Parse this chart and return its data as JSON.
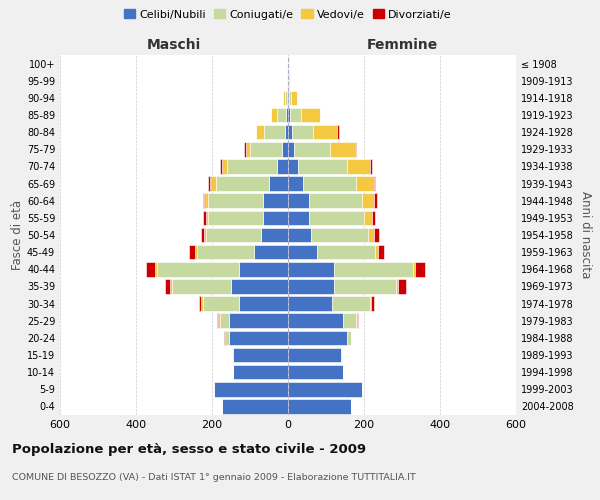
{
  "age_groups": [
    "0-4",
    "5-9",
    "10-14",
    "15-19",
    "20-24",
    "25-29",
    "30-34",
    "35-39",
    "40-44",
    "45-49",
    "50-54",
    "55-59",
    "60-64",
    "65-69",
    "70-74",
    "75-79",
    "80-84",
    "85-89",
    "90-94",
    "95-99",
    "100+"
  ],
  "birth_years": [
    "2004-2008",
    "1999-2003",
    "1994-1998",
    "1989-1993",
    "1984-1988",
    "1979-1983",
    "1974-1978",
    "1969-1973",
    "1964-1968",
    "1959-1963",
    "1954-1958",
    "1949-1953",
    "1944-1948",
    "1939-1943",
    "1934-1938",
    "1929-1933",
    "1924-1928",
    "1919-1923",
    "1914-1918",
    "1909-1913",
    "≤ 1908"
  ],
  "colors": {
    "celibi": "#4472c4",
    "coniugati": "#c5d9a0",
    "vedovi": "#f5c842",
    "divorziati": "#cc0000"
  },
  "maschi": {
    "celibi": [
      175,
      195,
      145,
      145,
      155,
      155,
      130,
      150,
      130,
      90,
      70,
      65,
      65,
      50,
      30,
      15,
      8,
      5,
      2,
      1,
      0
    ],
    "coniugati": [
      0,
      0,
      0,
      3,
      10,
      25,
      95,
      155,
      215,
      150,
      145,
      145,
      145,
      140,
      130,
      85,
      55,
      25,
      5,
      1,
      0
    ],
    "vedovi": [
      0,
      0,
      0,
      0,
      2,
      3,
      3,
      5,
      5,
      5,
      5,
      5,
      10,
      15,
      15,
      10,
      20,
      15,
      5,
      1,
      0
    ],
    "divorziati": [
      0,
      0,
      0,
      0,
      2,
      5,
      5,
      15,
      25,
      15,
      10,
      10,
      5,
      5,
      5,
      5,
      0,
      0,
      0,
      0,
      0
    ]
  },
  "femmine": {
    "celibi": [
      165,
      195,
      145,
      140,
      155,
      145,
      115,
      120,
      120,
      75,
      60,
      55,
      55,
      40,
      25,
      15,
      10,
      5,
      3,
      1,
      1
    ],
    "coniugati": [
      0,
      0,
      0,
      3,
      10,
      35,
      100,
      165,
      210,
      155,
      150,
      145,
      140,
      140,
      130,
      95,
      55,
      30,
      5,
      1,
      0
    ],
    "vedovi": [
      0,
      0,
      0,
      0,
      1,
      2,
      3,
      5,
      5,
      8,
      15,
      20,
      30,
      45,
      60,
      65,
      65,
      50,
      15,
      3,
      1
    ],
    "divorziati": [
      0,
      0,
      0,
      0,
      1,
      3,
      8,
      20,
      25,
      15,
      15,
      10,
      10,
      5,
      5,
      5,
      3,
      0,
      0,
      0,
      0
    ]
  },
  "title": "Popolazione per età, sesso e stato civile - 2009",
  "subtitle": "COMUNE DI BESOZZO (VA) - Dati ISTAT 1° gennaio 2009 - Elaborazione TUTTITALIA.IT",
  "xlabel_left": "Maschi",
  "xlabel_right": "Femmine",
  "ylabel_left": "Fasce di età",
  "ylabel_right": "Anni di nascita",
  "xlim": 600,
  "legend_labels": [
    "Celibi/Nubili",
    "Coniugati/e",
    "Vedovi/e",
    "Divorziati/e"
  ],
  "bg_color": "#f0f0f0",
  "plot_bg": "#ffffff",
  "grid_color": "#cccccc"
}
